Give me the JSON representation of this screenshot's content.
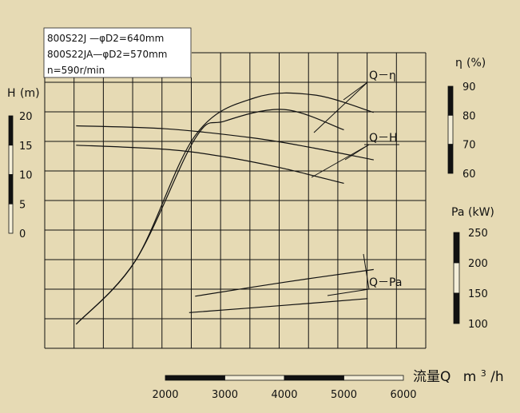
{
  "background": "#E6DAB4",
  "line_color": "#111111",
  "chart_data": {
    "type": "line",
    "legend_lines": [
      "800S22J —φD2=640mm",
      "800S22JA—φD2=570mm",
      "n=590r/min"
    ],
    "x_axis": {
      "label": "流量Q",
      "unit_base": "m",
      "unit_sup": "3",
      "unit_tail": "/h",
      "ticks": [
        2000,
        3000,
        4000,
        5000,
        6000
      ],
      "range": [
        2000,
        6000
      ]
    },
    "axes": {
      "H": {
        "label_main": "H",
        "label_unit": "(m)",
        "ticks": [
          0,
          5,
          10,
          15,
          20
        ],
        "range": [
          0,
          20
        ]
      },
      "eta": {
        "label_main": "η",
        "label_unit": "(%)",
        "ticks": [
          60,
          70,
          80,
          90
        ],
        "range": [
          60,
          90
        ]
      },
      "Pa": {
        "label_main": "Pa",
        "label_unit": "(kW)",
        "ticks": [
          100,
          150,
          200,
          250
        ],
        "range": [
          100,
          250
        ]
      }
    },
    "curve_labels": {
      "eta": "Q－η",
      "H": "Q－H",
      "Pa": "Q－Pa"
    },
    "series": [
      {
        "group": "H",
        "x": [
          500,
          2000,
          3500,
          4500,
          5500
        ],
        "values": [
          18.3,
          17.8,
          16.2,
          14.5,
          12.5
        ]
      },
      {
        "group": "H",
        "x": [
          500,
          2000,
          3000,
          4000,
          5000
        ],
        "values": [
          15.0,
          14.3,
          13.0,
          11.0,
          8.5
        ]
      },
      {
        "group": "eta",
        "x": [
          500,
          1500,
          2500,
          3500,
          4500,
          5500
        ],
        "values": [
          8,
          30,
          73,
          86,
          87,
          81
        ]
      },
      {
        "group": "eta",
        "x": [
          500,
          1500,
          2500,
          3000,
          4000,
          5000
        ],
        "values": [
          8,
          30,
          72,
          78,
          82,
          75
        ]
      },
      {
        "group": "Pa",
        "x": [
          2500,
          4000,
          5500
        ],
        "values": [
          145,
          168,
          189
        ]
      },
      {
        "group": "Pa",
        "x": [
          2400,
          4000,
          5400
        ],
        "values": [
          118,
          130,
          141
        ]
      }
    ]
  }
}
